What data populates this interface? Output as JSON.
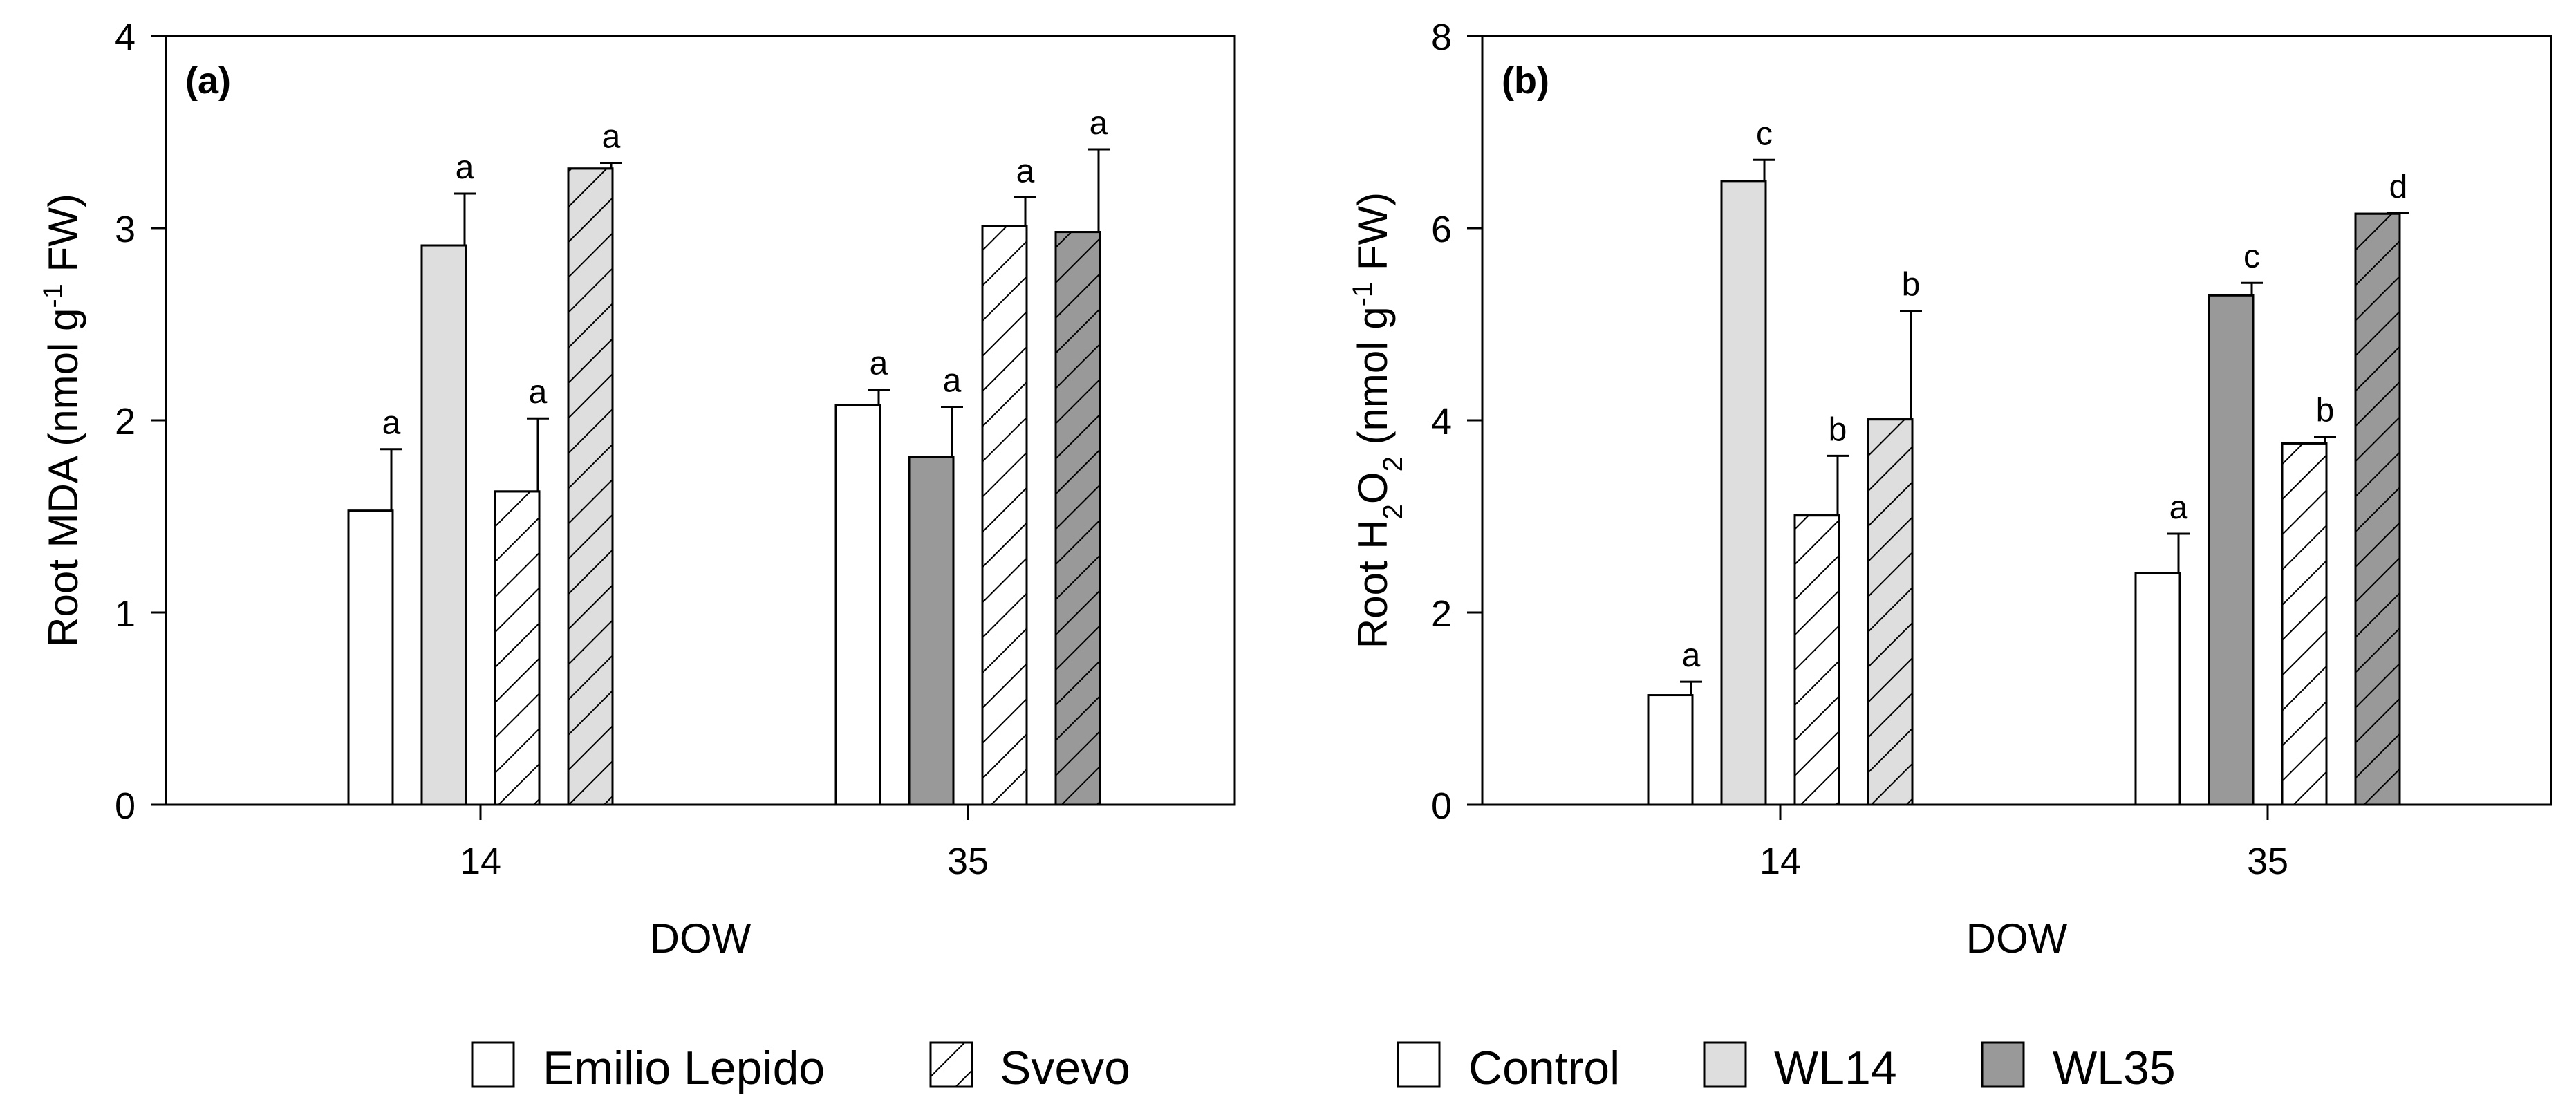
{
  "figure": {
    "colors": {
      "control": "#ffffff",
      "wl14": "#dedede",
      "wl35": "#999999",
      "stroke": "#000000"
    },
    "legend": {
      "cultivars": [
        {
          "label": "Emilio Lepido",
          "pattern": "solid"
        },
        {
          "label": "Svevo",
          "pattern": "hatch"
        }
      ],
      "treatments": [
        {
          "label": "Control",
          "color": "#ffffff"
        },
        {
          "label": "WL14",
          "color": "#dedede"
        },
        {
          "label": "WL35",
          "color": "#999999"
        }
      ]
    }
  },
  "chart_data": [
    {
      "type": "bar",
      "panel_label": "(a)",
      "title": "",
      "xlabel": "DOW",
      "ylabel": "Root MDA (nmol g-1 FW)",
      "ylabel_parts": {
        "base": "Root MDA (nmol g",
        "sup": "-1",
        "tail": " FW)"
      },
      "ylim": [
        0,
        4
      ],
      "yticks": [
        0,
        1,
        2,
        3,
        4
      ],
      "categories": [
        "14",
        "35"
      ],
      "bars": [
        {
          "category": "14",
          "cultivar": "Emilio Lepido",
          "treatment": "Control",
          "value": 1.53,
          "error": 0.32,
          "letter": "a"
        },
        {
          "category": "14",
          "cultivar": "Emilio Lepido",
          "treatment": "WL14",
          "value": 2.91,
          "error": 0.27,
          "letter": "a"
        },
        {
          "category": "14",
          "cultivar": "Svevo",
          "treatment": "Control",
          "value": 1.63,
          "error": 0.38,
          "letter": "a"
        },
        {
          "category": "14",
          "cultivar": "Svevo",
          "treatment": "WL14",
          "value": 3.31,
          "error": 0.03,
          "letter": "a"
        },
        {
          "category": "35",
          "cultivar": "Emilio Lepido",
          "treatment": "Control",
          "value": 2.08,
          "error": 0.08,
          "letter": "a"
        },
        {
          "category": "35",
          "cultivar": "Emilio Lepido",
          "treatment": "WL35",
          "value": 1.81,
          "error": 0.26,
          "letter": "a"
        },
        {
          "category": "35",
          "cultivar": "Svevo",
          "treatment": "Control",
          "value": 3.01,
          "error": 0.15,
          "letter": "a"
        },
        {
          "category": "35",
          "cultivar": "Svevo",
          "treatment": "WL35",
          "value": 2.98,
          "error": 0.43,
          "letter": "a"
        }
      ]
    },
    {
      "type": "bar",
      "panel_label": "(b)",
      "title": "",
      "xlabel": "DOW",
      "ylabel": "Root H2O2 (nmol g-1 FW)",
      "ylabel_parts": {
        "base": "Root H",
        "sub1": "2",
        "mid": "O",
        "sub2": "2",
        "mid2": " (nmol g",
        "sup": "-1",
        "tail": " FW)"
      },
      "ylim": [
        0,
        8
      ],
      "yticks": [
        0,
        2,
        4,
        6,
        8
      ],
      "categories": [
        "14",
        "35"
      ],
      "bars": [
        {
          "category": "14",
          "cultivar": "Emilio Lepido",
          "treatment": "Control",
          "value": 1.14,
          "error": 0.14,
          "letter": "a"
        },
        {
          "category": "14",
          "cultivar": "Emilio Lepido",
          "treatment": "WL14",
          "value": 6.49,
          "error": 0.22,
          "letter": "c"
        },
        {
          "category": "14",
          "cultivar": "Svevo",
          "treatment": "Control",
          "value": 3.01,
          "error": 0.62,
          "letter": "b"
        },
        {
          "category": "14",
          "cultivar": "Svevo",
          "treatment": "WL14",
          "value": 4.01,
          "error": 1.13,
          "letter": "b"
        },
        {
          "category": "35",
          "cultivar": "Emilio Lepido",
          "treatment": "Control",
          "value": 2.41,
          "error": 0.41,
          "letter": "a"
        },
        {
          "category": "35",
          "cultivar": "Emilio Lepido",
          "treatment": "WL35",
          "value": 5.3,
          "error": 0.13,
          "letter": "c"
        },
        {
          "category": "35",
          "cultivar": "Svevo",
          "treatment": "Control",
          "value": 3.76,
          "error": 0.07,
          "letter": "b"
        },
        {
          "category": "35",
          "cultivar": "Svevo",
          "treatment": "WL35",
          "value": 6.15,
          "error": 0.01,
          "letter": "d"
        }
      ]
    }
  ]
}
